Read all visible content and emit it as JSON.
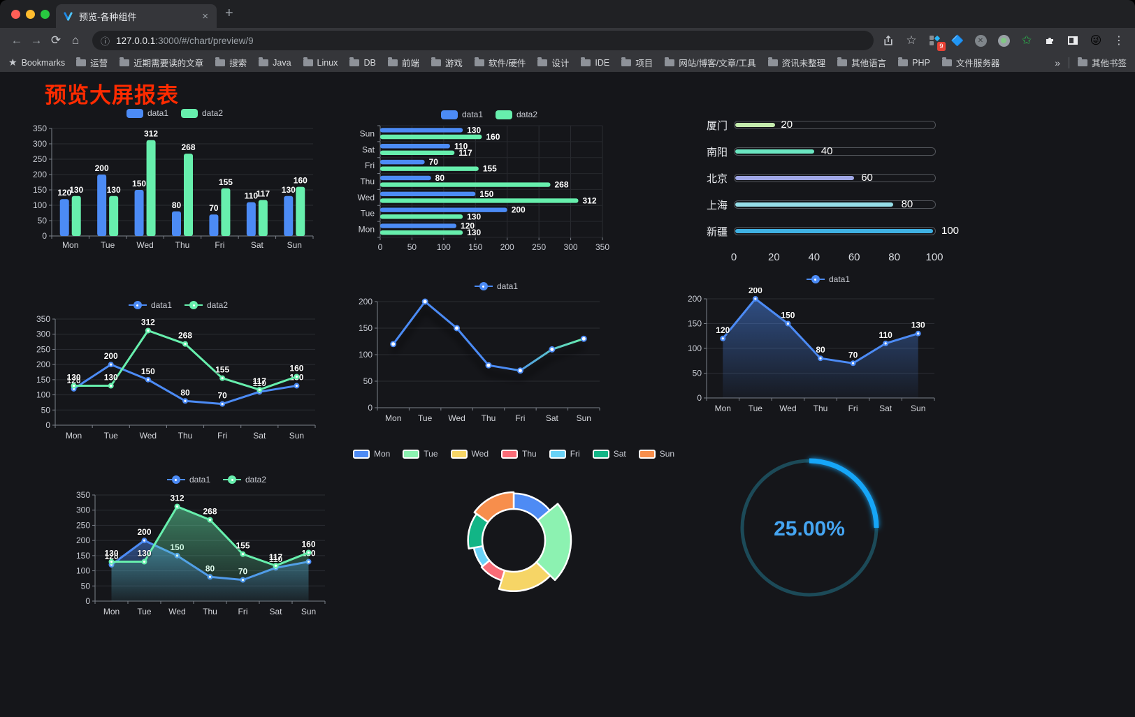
{
  "browser": {
    "tab": {
      "title": "预览-各种组件",
      "close": "×",
      "new_tab": "+"
    },
    "url": {
      "host": "127.0.0.1",
      "rest": ":3000/#/chart/preview/9"
    },
    "extension_badge": "9",
    "bookmarks_bar": {
      "bookmarks_label": "Bookmarks",
      "folders": [
        "运营",
        "近期需要读的文章",
        "搜索",
        "Java",
        "Linux",
        "DB",
        "前端",
        "游戏",
        "软件/硬件",
        "设计",
        "IDE",
        "项目",
        "网站/博客/文章/工具",
        "资讯未整理",
        "其他语言",
        "PHP",
        "文件服务器"
      ],
      "overflow": "»",
      "other_bookmarks": "其他书签"
    }
  },
  "page": {
    "heading": "预览大屏报表",
    "heading_color": "#FF2B00"
  },
  "chart_data": [
    {
      "type": "bar",
      "categories": [
        "Mon",
        "Tue",
        "Wed",
        "Thu",
        "Fri",
        "Sat",
        "Sun"
      ],
      "series": [
        {
          "name": "data1",
          "color": "#4C8BF5",
          "values": [
            120,
            200,
            150,
            80,
            70,
            110,
            130
          ]
        },
        {
          "name": "data2",
          "color": "#67EFAD",
          "values": [
            130,
            130,
            312,
            268,
            155,
            117,
            160
          ]
        }
      ],
      "ylim": [
        0,
        350
      ],
      "ystep": 50,
      "labels": true
    },
    {
      "type": "hbar",
      "categories": [
        "Mon",
        "Tue",
        "Wed",
        "Thu",
        "Fri",
        "Sat",
        "Sun"
      ],
      "series": [
        {
          "name": "data1",
          "color": "#4C8BF5",
          "values": [
            120,
            200,
            150,
            80,
            70,
            110,
            130
          ]
        },
        {
          "name": "data2",
          "color": "#67EFAD",
          "values": [
            130,
            130,
            312,
            268,
            155,
            117,
            160
          ]
        }
      ],
      "xlim": [
        0,
        350
      ],
      "xstep": 50,
      "labels": true
    },
    {
      "type": "progress",
      "max": 100,
      "axis_ticks": [
        0,
        20,
        40,
        60,
        80,
        100
      ],
      "items": [
        {
          "label": "厦门",
          "value": 20,
          "color": "#C4EBAD"
        },
        {
          "label": "南阳",
          "value": 40,
          "color": "#6BE6C1"
        },
        {
          "label": "北京",
          "value": 60,
          "color": "#A0A7E6"
        },
        {
          "label": "上海",
          "value": 80,
          "color": "#96DEE8"
        },
        {
          "label": "新疆",
          "value": 100,
          "color": "#3FB1E3"
        }
      ]
    },
    {
      "type": "line",
      "categories": [
        "Mon",
        "Tue",
        "Wed",
        "Thu",
        "Fri",
        "Sat",
        "Sun"
      ],
      "series": [
        {
          "name": "data1",
          "color": "#4C8BF5",
          "values": [
            120,
            200,
            150,
            80,
            70,
            110,
            130
          ]
        },
        {
          "name": "data2",
          "color": "#67EFAD",
          "values": [
            130,
            130,
            312,
            268,
            155,
            117,
            160
          ]
        }
      ],
      "ylim": [
        0,
        350
      ],
      "ystep": 50,
      "labels": true,
      "marker": "dot"
    },
    {
      "type": "line",
      "categories": [
        "Mon",
        "Tue",
        "Wed",
        "Thu",
        "Fri",
        "Sat",
        "Sun"
      ],
      "series": [
        {
          "name": "data1",
          "color": "#4C8BF5",
          "values": [
            120,
            200,
            150,
            80,
            70,
            110,
            130
          ]
        }
      ],
      "ylim": [
        0,
        200
      ],
      "ystep": 50,
      "labels": false,
      "marker": "ring",
      "stroke_gradient": [
        "#4C8BF5",
        "#67EFAD"
      ],
      "shadow": true
    },
    {
      "type": "line",
      "categories": [
        "Mon",
        "Tue",
        "Wed",
        "Thu",
        "Fri",
        "Sat",
        "Sun"
      ],
      "series": [
        {
          "name": "data1",
          "color": "#4C8BF5",
          "values": [
            120,
            200,
            150,
            80,
            70,
            110,
            130
          ],
          "area": true
        }
      ],
      "ylim": [
        0,
        200
      ],
      "ystep": 50,
      "labels": true,
      "marker": "dot"
    },
    {
      "type": "line",
      "categories": [
        "Mon",
        "Tue",
        "Wed",
        "Thu",
        "Fri",
        "Sat",
        "Sun"
      ],
      "series": [
        {
          "name": "data1",
          "color": "#4C8BF5",
          "values": [
            120,
            200,
            150,
            80,
            70,
            110,
            130
          ],
          "area": true
        },
        {
          "name": "data2",
          "color": "#67EFAD",
          "values": [
            130,
            130,
            312,
            268,
            155,
            117,
            160
          ],
          "area": true
        }
      ],
      "ylim": [
        0,
        350
      ],
      "ystep": 50,
      "labels": true,
      "marker": "dot"
    },
    {
      "type": "rose",
      "items": [
        {
          "label": "Mon",
          "value": 120,
          "color": "#4E8BF4"
        },
        {
          "label": "Tue",
          "value": 200,
          "color": "#8CF2B1"
        },
        {
          "label": "Wed",
          "value": 150,
          "color": "#F6D566"
        },
        {
          "label": "Thu",
          "value": 80,
          "color": "#F96C77"
        },
        {
          "label": "Fri",
          "value": 70,
          "color": "#69D2F7"
        },
        {
          "label": "Sat",
          "value": 110,
          "color": "#12B586"
        },
        {
          "label": "Sun",
          "value": 130,
          "color": "#F78E4C"
        }
      ]
    },
    {
      "type": "gauge",
      "value_text": "25.00%",
      "percent": 25,
      "arc_color": "#18A6F8",
      "track_color": "#1C4A58",
      "text_color": "#45A5F2"
    }
  ]
}
